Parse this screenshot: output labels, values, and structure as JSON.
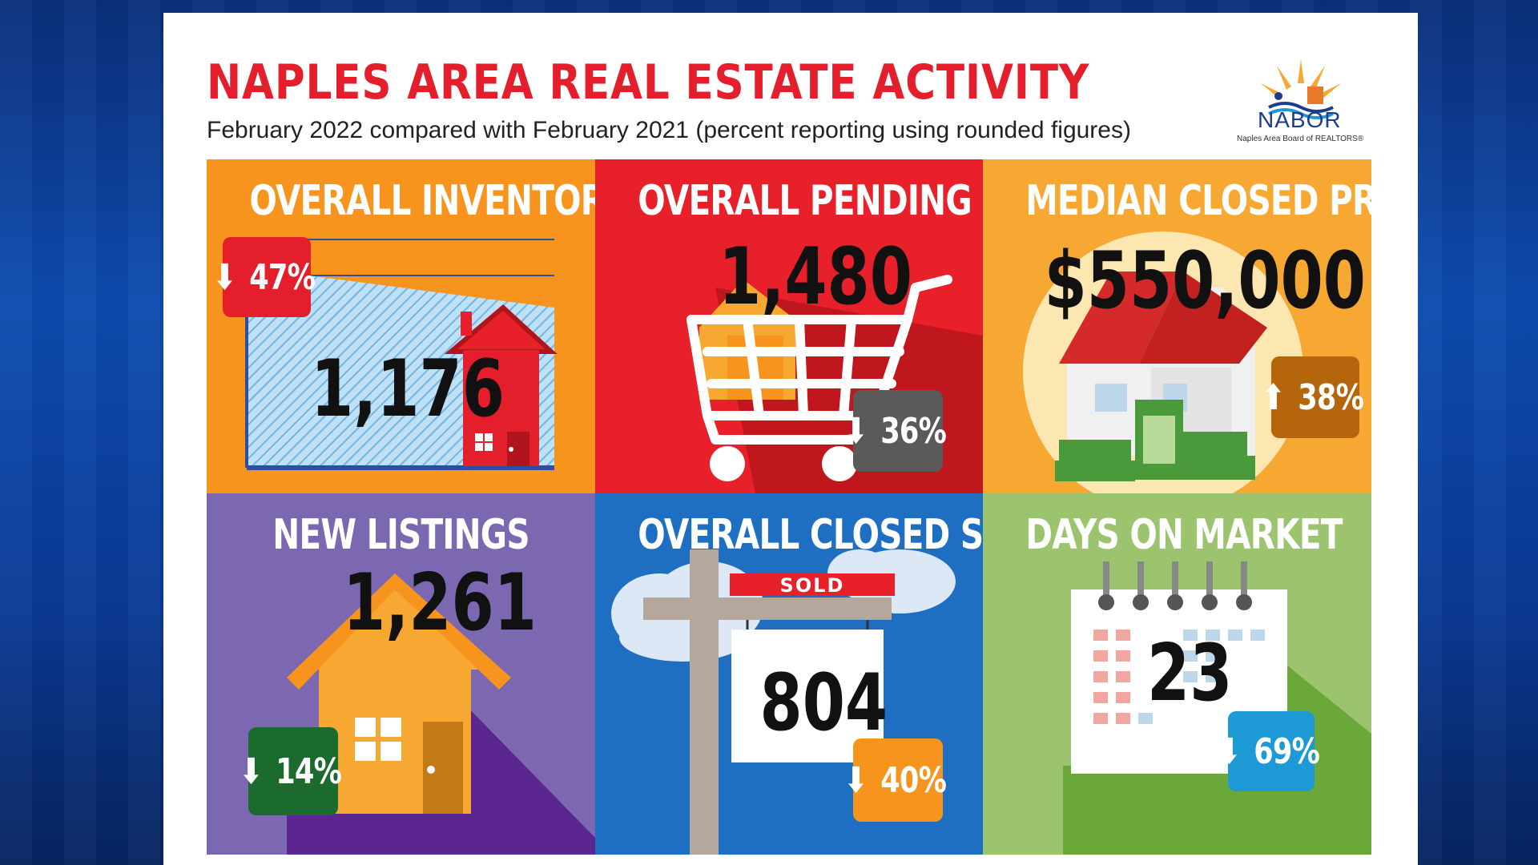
{
  "header": {
    "title": "NAPLES AREA REAL ESTATE ACTIVITY",
    "subtitle": "February 2022 compared with February 2021 (percent reporting using rounded figures)"
  },
  "logo": {
    "word": "NABOR",
    "sub": "Naples Area Board of REALTORS®"
  },
  "tiles": [
    {
      "title": "OVERALL INVENTORY",
      "value": "1,176",
      "change": "47%",
      "direction": "down",
      "color": "#f7941d",
      "badge_color": "#e41e2b",
      "icon": "house-chart-icon"
    },
    {
      "title": "OVERALL PENDING SALES",
      "value": "1,480",
      "change": "36%",
      "direction": "down",
      "color": "#e8202a",
      "badge_color": "#5a5a5a",
      "icon": "shopping-cart-icon"
    },
    {
      "title": "MEDIAN CLOSED PRICE",
      "value": "$550,000",
      "change": "38%",
      "direction": "up",
      "color": "#f6a833",
      "badge_color": "#b5650b",
      "icon": "house-money-icon"
    },
    {
      "title": "NEW LISTINGS",
      "value": "1,261",
      "change": "14%",
      "direction": "down",
      "color": "#7b68b0",
      "badge_color": "#1c6b2e",
      "icon": "house-icon"
    },
    {
      "title": "OVERALL CLOSED SALES",
      "value": "804",
      "change": "40%",
      "direction": "down",
      "color": "#1e6fc1",
      "badge_color": "#f7941d",
      "icon": "sold-sign-icon",
      "sign_label": "SOLD"
    },
    {
      "title": "DAYS ON MARKET",
      "value": "23",
      "change": "69%",
      "direction": "down",
      "color": "#9cc36e",
      "badge_color": "#1d9ad6",
      "icon": "calendar-icon"
    }
  ],
  "arrows": {
    "down": "⬇",
    "up": "⬆"
  }
}
